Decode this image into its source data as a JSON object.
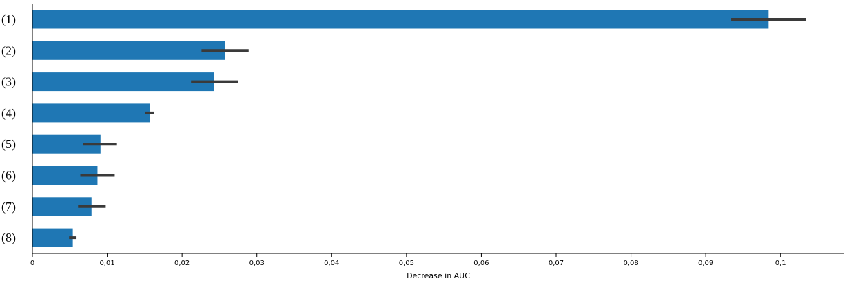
{
  "chart_data": {
    "type": "bar",
    "orientation": "horizontal",
    "title": "",
    "xlabel": "Decrease in AUC",
    "ylabel": "",
    "xlim": [
      0,
      0.1085
    ],
    "grid": false,
    "legend": "none",
    "bar_color": "#1f77b4",
    "error_color": "#3a3a3a",
    "categories": [
      "(1)",
      "(2)",
      "(3)",
      "(4)",
      "(5)",
      "(6)",
      "(7)",
      "(8)"
    ],
    "values": [
      0.0984,
      0.0257,
      0.0243,
      0.0157,
      0.0091,
      0.0087,
      0.0079,
      0.0054
    ],
    "error_low": [
      0.0934,
      0.0226,
      0.0212,
      0.0151,
      0.0068,
      0.0064,
      0.0061,
      0.0049
    ],
    "error_high": [
      0.1034,
      0.0289,
      0.0275,
      0.0163,
      0.0113,
      0.011,
      0.0098,
      0.0059
    ],
    "x_ticks": [
      0,
      0.01,
      0.02,
      0.03,
      0.04,
      0.05,
      0.06,
      0.07,
      0.08,
      0.09,
      0.1
    ],
    "x_tick_labels": [
      "0",
      "0,01",
      "0,02",
      "0,03",
      "0,04",
      "0,05",
      "0,06",
      "0,07",
      "0,08",
      "0,09",
      "0,1"
    ]
  }
}
